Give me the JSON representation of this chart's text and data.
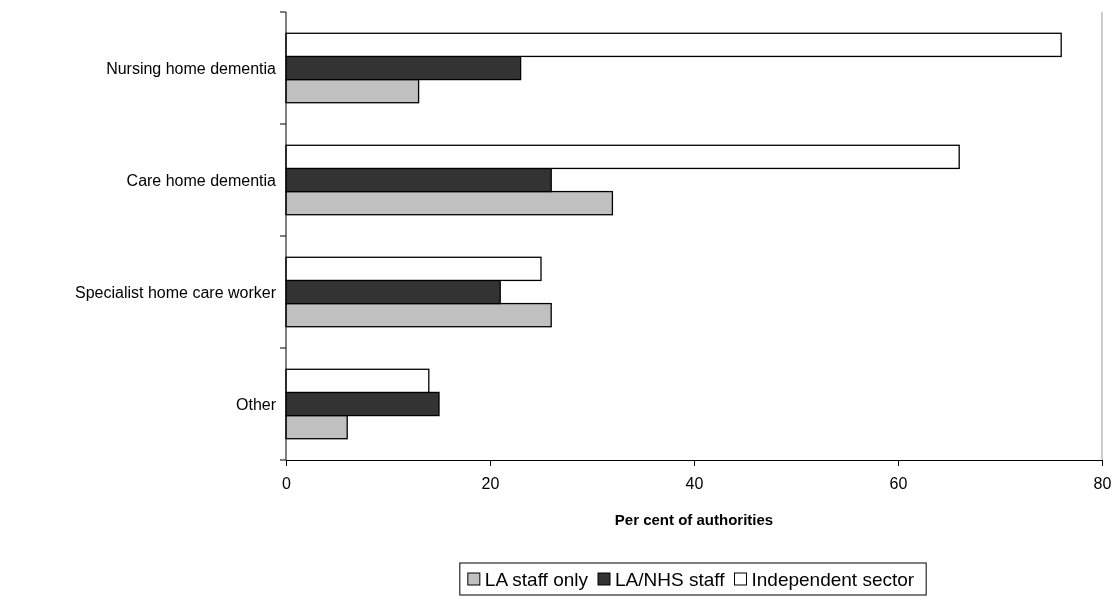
{
  "chart_data": {
    "type": "bar",
    "orientation": "horizontal",
    "xlabel": "Per cent of authorities",
    "categories": [
      "Nursing home dementia",
      "Care home dementia",
      "Specialist home care worker",
      "Other"
    ],
    "series": [
      {
        "name": "LA staff only",
        "color": "#c0c0c0",
        "values": [
          13,
          32,
          26,
          6
        ]
      },
      {
        "name": "LA/NHS staff",
        "color": "#333333",
        "values": [
          23,
          26,
          21,
          15
        ]
      },
      {
        "name": "Independent sector",
        "color": "#ffffff",
        "values": [
          76,
          66,
          25,
          14
        ]
      }
    ],
    "xlim": [
      0,
      80
    ],
    "xticks": [
      0,
      20,
      40,
      60,
      80
    ],
    "grid": false,
    "legend": "bottom"
  }
}
